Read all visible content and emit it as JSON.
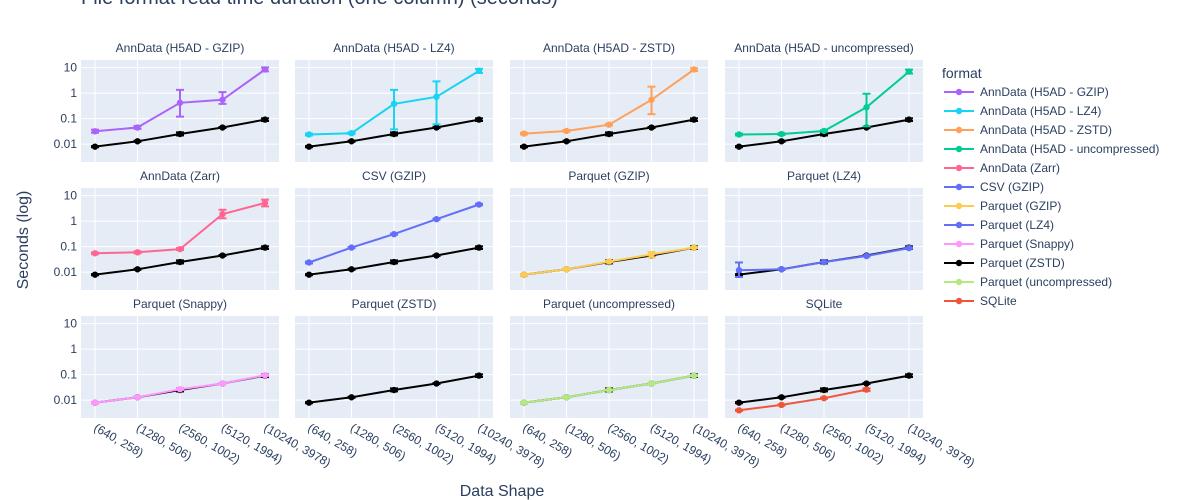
{
  "chart_data": {
    "type": "line",
    "title": "File format read time duration (one column) (seconds)",
    "xlabel": "Data Shape",
    "ylabel": "Seconds (log)",
    "y_scale": "log",
    "ylim": [
      0.002,
      20
    ],
    "y_ticks": [
      0.01,
      0.1,
      1,
      10
    ],
    "y_tick_labels": [
      "0.01",
      "0.1",
      "1",
      "10"
    ],
    "categories": [
      "(640, 258)",
      "(1280, 506)",
      "(2560, 1002)",
      "(5120, 1994)",
      "(10240, 3978)"
    ],
    "legend_title": "format",
    "legend_position": "right",
    "grid": true,
    "reference_series": "Parquet (ZSTD)",
    "series": [
      {
        "name": "AnnData (H5AD - GZIP)",
        "color": "#ab63fa",
        "values": [
          0.032,
          0.045,
          0.42,
          0.55,
          8.5
        ],
        "err_low": [
          0.028,
          0.04,
          0.12,
          0.38,
          7.2
        ],
        "err_high": [
          0.037,
          0.052,
          1.35,
          1.1,
          10.2
        ]
      },
      {
        "name": "AnnData (H5AD - LZ4)",
        "color": "#19d3f3",
        "values": [
          0.024,
          0.027,
          0.38,
          0.72,
          7.5
        ],
        "err_low": [
          0.022,
          0.025,
          0.038,
          0.06,
          6.2
        ],
        "err_high": [
          0.026,
          0.029,
          1.35,
          2.9,
          9.0
        ]
      },
      {
        "name": "AnnData (H5AD - ZSTD)",
        "color": "#ffa15a",
        "values": [
          0.026,
          0.033,
          0.058,
          0.55,
          8.5
        ],
        "err_low": [
          0.024,
          0.031,
          0.054,
          0.15,
          7.4
        ],
        "err_high": [
          0.028,
          0.036,
          0.062,
          1.8,
          9.5
        ]
      },
      {
        "name": "AnnData (H5AD - uncompressed)",
        "color": "#00cc96",
        "values": [
          0.024,
          0.025,
          0.033,
          0.28,
          7.0
        ],
        "err_low": [
          0.022,
          0.023,
          0.031,
          0.05,
          5.9
        ],
        "err_high": [
          0.026,
          0.027,
          0.035,
          0.95,
          8.4
        ]
      },
      {
        "name": "AnnData (Zarr)",
        "color": "#ff6692",
        "values": [
          0.055,
          0.06,
          0.08,
          1.9,
          5.2
        ],
        "err_low": [
          0.051,
          0.055,
          0.074,
          1.3,
          3.8
        ],
        "err_high": [
          0.059,
          0.066,
          0.088,
          2.8,
          7.0
        ]
      },
      {
        "name": "CSV (GZIP)",
        "color": "#636efa",
        "values": [
          0.024,
          0.092,
          0.31,
          1.2,
          4.5
        ],
        "err_low": [
          0.022,
          0.088,
          0.295,
          1.14,
          4.2
        ],
        "err_high": [
          0.026,
          0.096,
          0.325,
          1.26,
          4.8
        ]
      },
      {
        "name": "Parquet (GZIP)",
        "color": "#fecb52",
        "values": [
          0.008,
          0.013,
          0.026,
          0.05,
          0.092
        ],
        "err_low": [
          0.0076,
          0.0124,
          0.0245,
          0.038,
          0.088
        ],
        "err_high": [
          0.0084,
          0.0137,
          0.0275,
          0.062,
          0.096
        ]
      },
      {
        "name": "Parquet (LZ4)",
        "color": "#636efa",
        "values": [
          0.012,
          0.013,
          0.025,
          0.043,
          0.088
        ],
        "err_low": [
          0.0065,
          0.0124,
          0.0238,
          0.041,
          0.084
        ],
        "err_high": [
          0.024,
          0.0136,
          0.0262,
          0.045,
          0.093
        ]
      },
      {
        "name": "Parquet (Snappy)",
        "color": "#ff97ff",
        "values": [
          0.008,
          0.013,
          0.027,
          0.045,
          0.095
        ],
        "err_low": [
          0.0076,
          0.0124,
          0.0255,
          0.043,
          0.09
        ],
        "err_high": [
          0.0084,
          0.0136,
          0.0285,
          0.047,
          0.1
        ]
      },
      {
        "name": "Parquet (ZSTD)",
        "color": "#000000",
        "values": [
          0.008,
          0.013,
          0.025,
          0.045,
          0.092
        ],
        "err_low": [
          0.0076,
          0.0124,
          0.022,
          0.043,
          0.081
        ],
        "err_high": [
          0.0084,
          0.0136,
          0.029,
          0.047,
          0.103
        ]
      },
      {
        "name": "Parquet (uncompressed)",
        "color": "#b6e880",
        "values": [
          0.008,
          0.013,
          0.025,
          0.045,
          0.092
        ],
        "err_low": [
          0.0076,
          0.0124,
          0.0238,
          0.043,
          0.088
        ],
        "err_high": [
          0.0084,
          0.0136,
          0.0262,
          0.047,
          0.096
        ]
      },
      {
        "name": "SQLite",
        "color": "#ef553b",
        "values": [
          0.004,
          0.0065,
          0.012,
          0.026,
          null
        ],
        "err_low": [
          0.0038,
          0.0062,
          0.0114,
          0.023,
          null
        ],
        "err_high": [
          0.0042,
          0.0068,
          0.0126,
          0.029,
          null
        ]
      }
    ]
  }
}
